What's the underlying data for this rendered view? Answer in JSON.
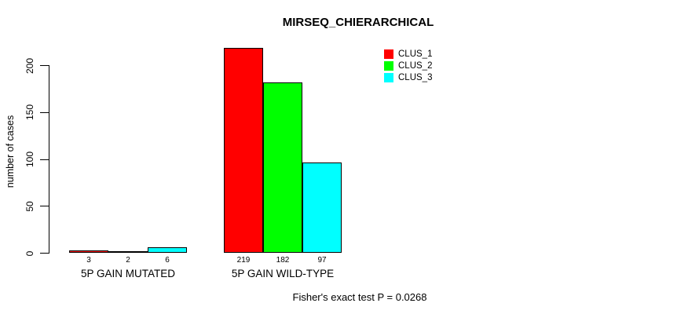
{
  "chart_data": {
    "type": "bar",
    "title": "MIRSEQ_CHIERARCHICAL",
    "ylabel": "number of cases",
    "xlabel": "",
    "ylim": [
      0,
      220
    ],
    "yticks": [
      0,
      50,
      100,
      150,
      200
    ],
    "grid": false,
    "legend_position": "top-right",
    "categories": [
      "5P GAIN MUTATED",
      "5P GAIN WILD-TYPE"
    ],
    "series": [
      {
        "name": "CLUS_1",
        "color": "#ff0000",
        "values": [
          3,
          219
        ]
      },
      {
        "name": "CLUS_2",
        "color": "#00ff00",
        "values": [
          2,
          182
        ]
      },
      {
        "name": "CLUS_3",
        "color": "#00ffff",
        "values": [
          6,
          97
        ]
      }
    ],
    "show_values_under_bars": true,
    "annotation": "Fisher's exact test P = 0.0268",
    "bar_border_color": "#000000",
    "background_color": "#ffffff"
  }
}
